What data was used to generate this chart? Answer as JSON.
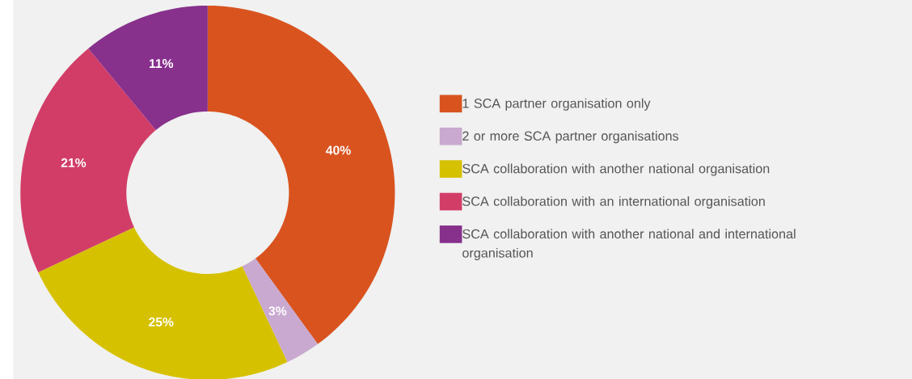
{
  "chart_data": {
    "type": "donut",
    "categories": [
      "1 SCA partner organisation only",
      "2 or more SCA partner organisations",
      "SCA collaboration with another national organisation",
      "SCA collaboration with an international organisation",
      "SCA collaboration with another national and international organisation"
    ],
    "values": [
      40,
      3,
      25,
      21,
      11
    ],
    "colors": [
      "#d9531f",
      "#c9a9d0",
      "#d6c100",
      "#d23d68",
      "#87308c"
    ],
    "value_labels": [
      "40%",
      "3%",
      "25%",
      "21%",
      "11%"
    ],
    "legend": "right"
  }
}
